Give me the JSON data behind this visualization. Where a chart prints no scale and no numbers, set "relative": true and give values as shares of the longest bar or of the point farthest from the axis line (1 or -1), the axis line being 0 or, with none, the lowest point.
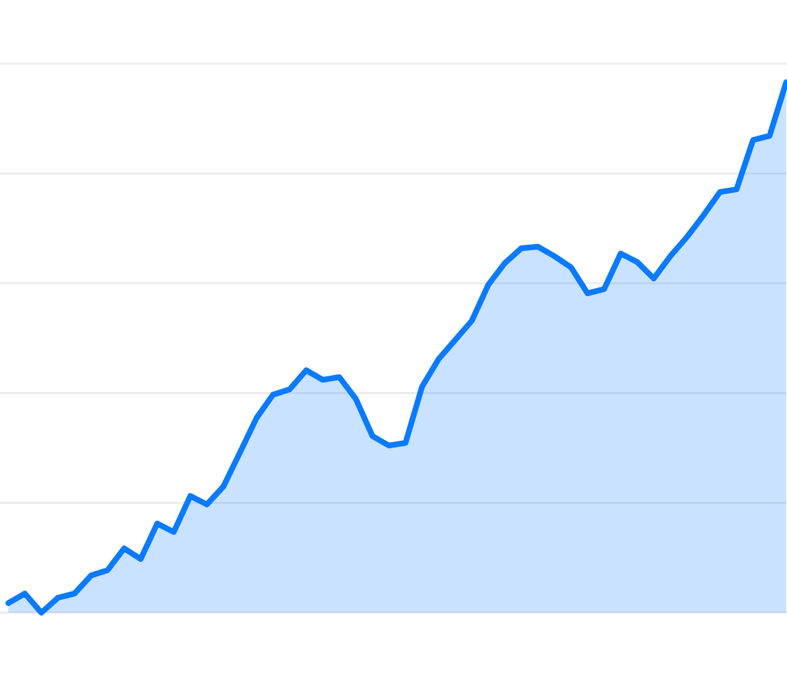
{
  "chart_data": {
    "type": "area",
    "relative": true,
    "grid": "y",
    "legend": false,
    "categories": [
      null,
      null,
      null,
      null,
      null,
      null,
      null,
      null,
      null,
      null,
      null,
      null,
      null,
      null,
      null,
      null,
      null,
      null,
      null,
      null,
      null,
      null,
      null,
      null,
      null,
      null,
      null,
      null,
      null,
      null,
      null,
      null,
      null,
      null,
      null,
      null,
      null,
      null,
      null,
      null,
      null,
      null,
      null,
      null,
      null,
      null,
      null,
      null
    ],
    "series": [
      {
        "color": "#0a7aff",
        "values": [
          0.018,
          0.036,
          0,
          0.028,
          0.036,
          0.07,
          0.08,
          0.121,
          0.101,
          0.168,
          0.152,
          0.22,
          0.204,
          0.238,
          0.302,
          0.367,
          0.411,
          0.421,
          0.457,
          0.439,
          0.444,
          0.403,
          0.333,
          0.315,
          0.32,
          0.426,
          0.478,
          0.514,
          0.55,
          0.618,
          0.659,
          0.687,
          0.69,
          0.672,
          0.651,
          0.602,
          0.61,
          0.677,
          0.661,
          0.63,
          0.672,
          0.708,
          0.749,
          0.793,
          0.798,
          0.891,
          0.899,
          1
        ]
      }
    ]
  }
}
